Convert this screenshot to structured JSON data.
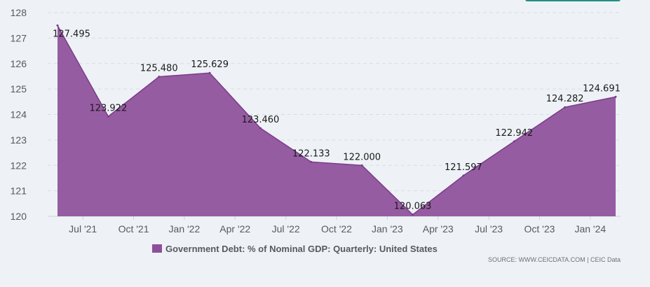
{
  "chart_data": {
    "type": "area",
    "x": [
      "2021-06-30",
      "2021-09-30",
      "2021-12-31",
      "2022-03-31",
      "2022-06-30",
      "2022-09-30",
      "2022-12-31",
      "2023-03-31",
      "2023-06-30",
      "2023-09-30",
      "2023-12-31",
      "2024-03-31"
    ],
    "x_ticks": [
      "Jul '21",
      "Oct '21",
      "Jan '22",
      "Apr '22",
      "Jul '22",
      "Oct '22",
      "Jan '23",
      "Apr '23",
      "Jul '23",
      "Oct '23",
      "Jan '24"
    ],
    "y_ticks": [
      120,
      121,
      122,
      123,
      124,
      125,
      126,
      127,
      128
    ],
    "ylim": [
      120,
      128
    ],
    "series": [
      {
        "name": "Government Debt: % of Nominal GDP: Quarterly: United States",
        "values": [
          127.495,
          123.922,
          125.48,
          125.629,
          123.46,
          122.133,
          122.0,
          120.063,
          121.597,
          122.942,
          124.282,
          124.691
        ],
        "labels": [
          "127.495",
          "123.922",
          "125.480",
          "125.629",
          "123.460",
          "122.133",
          "122.000",
          "120.063",
          "121.597",
          "122.942",
          "124.282",
          "124.691"
        ]
      }
    ],
    "grid": true,
    "legend_position": "bottom-center",
    "source": "SOURCE: WWW.CEICDATA.COM | CEIC Data",
    "colors": {
      "area": "#8e4f9a",
      "line": "#7b3c8a",
      "grid": "#d6dde4",
      "accent_tab": "#1f8f86"
    }
  }
}
